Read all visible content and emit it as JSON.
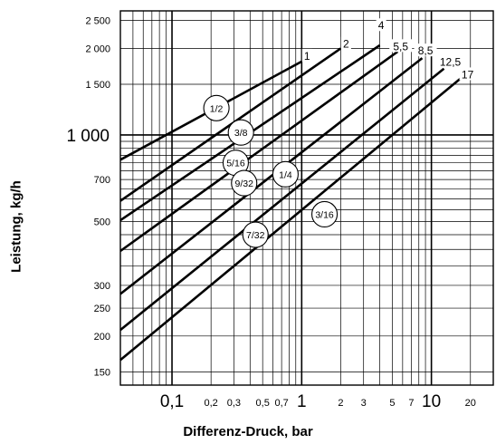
{
  "chart_data": {
    "type": "line",
    "title": "",
    "xlabel": "Differenz-Druck, bar",
    "ylabel": "Leistung, kg/h",
    "x_scale": "log",
    "y_scale": "log",
    "xlim": [
      0.04,
      30
    ],
    "ylim": [
      135,
      2700
    ],
    "grid": true,
    "x_ticks": [
      {
        "value": 0.1,
        "label": "0,1",
        "major": true
      },
      {
        "value": 0.2,
        "label": "0,2"
      },
      {
        "value": 0.3,
        "label": "0,3"
      },
      {
        "value": 0.5,
        "label": "0,5"
      },
      {
        "value": 0.7,
        "label": "0,7"
      },
      {
        "value": 1,
        "label": "1",
        "major": true
      },
      {
        "value": 2,
        "label": "2"
      },
      {
        "value": 3,
        "label": "3"
      },
      {
        "value": 5,
        "label": "5"
      },
      {
        "value": 7,
        "label": "7"
      },
      {
        "value": 10,
        "label": "10",
        "major": true
      },
      {
        "value": 20,
        "label": "20"
      }
    ],
    "y_ticks": [
      {
        "value": 150,
        "label": "150"
      },
      {
        "value": 200,
        "label": "200"
      },
      {
        "value": 250,
        "label": "250"
      },
      {
        "value": 300,
        "label": "300"
      },
      {
        "value": 500,
        "label": "500"
      },
      {
        "value": 700,
        "label": "700"
      },
      {
        "value": 1000,
        "label": "1 000",
        "major": true
      },
      {
        "value": 1500,
        "label": "1 500"
      },
      {
        "value": 2000,
        "label": "2 000"
      },
      {
        "value": 2500,
        "label": "2 500"
      }
    ],
    "series": [
      {
        "name": "1",
        "x": [
          0.04,
          1.0
        ],
        "y": [
          820,
          1800
        ]
      },
      {
        "name": "2",
        "x": [
          0.04,
          2.0
        ],
        "y": [
          590,
          2000
        ]
      },
      {
        "name": "4",
        "x": [
          0.04,
          4.0
        ],
        "y": [
          505,
          2050
        ]
      },
      {
        "name": "5,5",
        "x": [
          0.04,
          5.5
        ],
        "y": [
          395,
          1950
        ]
      },
      {
        "name": "8,5",
        "x": [
          0.04,
          8.5
        ],
        "y": [
          280,
          1850
        ]
      },
      {
        "name": "12,5",
        "x": [
          0.04,
          12.5
        ],
        "y": [
          210,
          1700
        ]
      },
      {
        "name": "17",
        "x": [
          0.04,
          17.0
        ],
        "y": [
          165,
          1580
        ]
      }
    ],
    "series_labels": [
      {
        "text": "1",
        "x": 1.1,
        "y": 1880
      },
      {
        "text": "2",
        "x": 2.2,
        "y": 2070
      },
      {
        "text": "4",
        "x": 4.1,
        "y": 2400
      },
      {
        "text": "5,5",
        "x": 5.8,
        "y": 2030
      },
      {
        "text": "8,5",
        "x": 9.0,
        "y": 1960
      },
      {
        "text": "12,5",
        "x": 14.0,
        "y": 1790
      },
      {
        "text": "17",
        "x": 19.0,
        "y": 1620
      }
    ],
    "annotations": [
      {
        "text": "1/2",
        "x": 0.22,
        "y": 1240
      },
      {
        "text": "3/8",
        "x": 0.34,
        "y": 1020
      },
      {
        "text": "5/16",
        "x": 0.31,
        "y": 800
      },
      {
        "text": "9/32",
        "x": 0.36,
        "y": 680
      },
      {
        "text": "1/4",
        "x": 0.75,
        "y": 730
      },
      {
        "text": "7/32",
        "x": 0.44,
        "y": 450
      },
      {
        "text": "3/16",
        "x": 1.5,
        "y": 530
      }
    ]
  }
}
